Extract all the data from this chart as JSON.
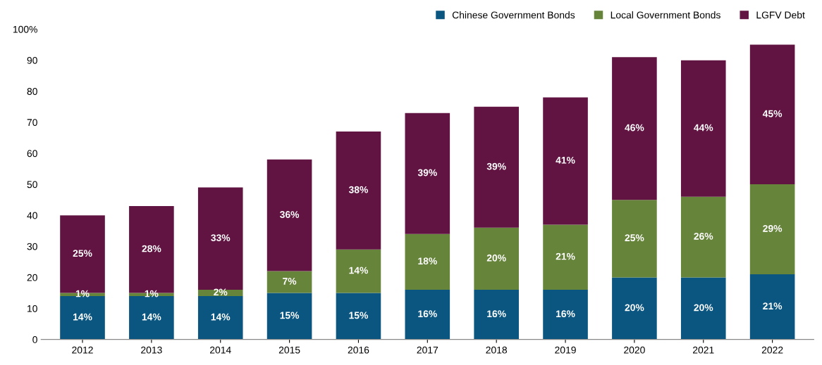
{
  "chart_data": {
    "type": "bar",
    "stacked": true,
    "categories": [
      "2012",
      "2013",
      "2014",
      "2015",
      "2016",
      "2017",
      "2018",
      "2019",
      "2020",
      "2021",
      "2022"
    ],
    "series": [
      {
        "name": "Chinese Government Bonds",
        "color": "#0b5680",
        "values": [
          14,
          14,
          14,
          15,
          15,
          16,
          16,
          16,
          20,
          20,
          21
        ],
        "value_labels": [
          "14%",
          "14%",
          "14%",
          "15%",
          "15%",
          "16%",
          "16%",
          "16%",
          "20%",
          "20%",
          "21%"
        ]
      },
      {
        "name": "Local Government Bonds",
        "color": "#66843a",
        "values": [
          1,
          1,
          2,
          7,
          14,
          18,
          20,
          21,
          25,
          26,
          29
        ],
        "value_labels": [
          "1%",
          "1%",
          "2%",
          "7%",
          "14%",
          "18%",
          "20%",
          "21%",
          "25%",
          "26%",
          "29%"
        ]
      },
      {
        "name": "LGFV Debt",
        "color": "#611442",
        "values": [
          25,
          28,
          33,
          36,
          38,
          39,
          39,
          41,
          46,
          44,
          45
        ],
        "value_labels": [
          "25%",
          "28%",
          "33%",
          "36%",
          "38%",
          "39%",
          "39%",
          "41%",
          "46%",
          "44%",
          "45%"
        ]
      }
    ],
    "ylim": [
      0,
      100
    ],
    "yticks": [
      0,
      10,
      20,
      30,
      40,
      50,
      60,
      70,
      80,
      90,
      {
        "value": 100,
        "label": "100%"
      }
    ],
    "grid": false,
    "legend": "top right"
  }
}
